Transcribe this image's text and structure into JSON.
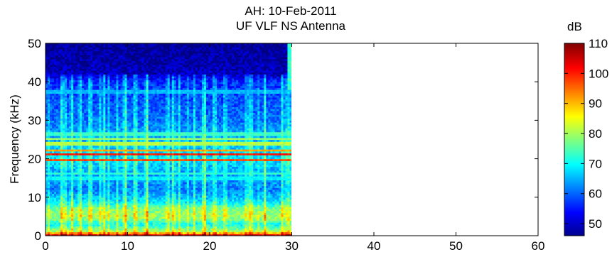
{
  "chart_data": {
    "type": "heatmap",
    "title": "AH: 10-Feb-2011",
    "subtitle": "UF VLF NS Antenna",
    "xlabel": "",
    "ylabel": "Frequency (kHz)",
    "xlim": [
      0,
      60
    ],
    "ylim": [
      0,
      50
    ],
    "x_ticks": [
      "0",
      "10",
      "20",
      "30",
      "40",
      "50",
      "60"
    ],
    "y_ticks": [
      "0",
      "10",
      "20",
      "30",
      "40",
      "50"
    ],
    "data_x_extent": [
      0,
      30
    ],
    "colorbar": {
      "label": "dB",
      "range": [
        46,
        110
      ],
      "ticks": [
        "50",
        "60",
        "70",
        "80",
        "90",
        "100",
        "110"
      ],
      "colormap": "jet"
    },
    "noise_floor_profile": [
      {
        "freq_khz": 0,
        "db": 104
      },
      {
        "freq_khz": 0.5,
        "db": 98
      },
      {
        "freq_khz": 1,
        "db": 82
      },
      {
        "freq_khz": 2,
        "db": 76
      },
      {
        "freq_khz": 3,
        "db": 70
      },
      {
        "freq_khz": 4,
        "db": 76
      },
      {
        "freq_khz": 5,
        "db": 80
      },
      {
        "freq_khz": 7,
        "db": 78
      },
      {
        "freq_khz": 9,
        "db": 68
      },
      {
        "freq_khz": 12,
        "db": 62
      },
      {
        "freq_khz": 16,
        "db": 64
      },
      {
        "freq_khz": 20,
        "db": 68
      },
      {
        "freq_khz": 26,
        "db": 65
      },
      {
        "freq_khz": 30,
        "db": 61
      },
      {
        "freq_khz": 35,
        "db": 59
      },
      {
        "freq_khz": 40,
        "db": 57
      },
      {
        "freq_khz": 42,
        "db": 50
      },
      {
        "freq_khz": 50,
        "db": 47
      }
    ],
    "narrowband_lines": [
      {
        "freq_khz": 19.8,
        "db": 98
      },
      {
        "freq_khz": 21.4,
        "db": 102
      },
      {
        "freq_khz": 22.3,
        "db": 92
      },
      {
        "freq_khz": 24.0,
        "db": 84
      },
      {
        "freq_khz": 25.2,
        "db": 80
      },
      {
        "freq_khz": 26.5,
        "db": 76
      },
      {
        "freq_khz": 16.4,
        "db": 74
      },
      {
        "freq_khz": 15.0,
        "db": 72
      },
      {
        "freq_khz": 37.5,
        "db": 68
      }
    ],
    "sferic_times_s": [
      3.2,
      5.5,
      7.1,
      9.8,
      12.4,
      14.9,
      15.6,
      19.4,
      20.6,
      24.8,
      26.7,
      28.9,
      29.7
    ]
  }
}
